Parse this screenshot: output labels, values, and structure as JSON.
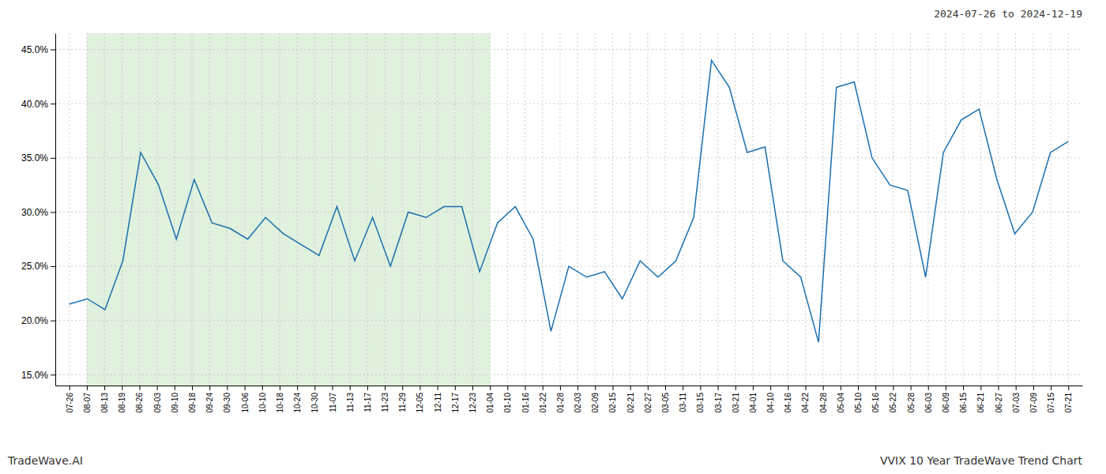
{
  "chart_data": {
    "type": "line",
    "title": "2024-07-26 to 2024-12-19",
    "annotations": [
      "TradeWave.AI",
      "VVIX 10 Year TradeWave Trend Chart"
    ],
    "x": [
      0,
      1.017857,
      2.035714,
      3.053571,
      4.071429,
      5.089286,
      6.107143,
      7.125,
      8.142857,
      9.160714,
      10.178571,
      11.196429,
      12.214286,
      13.232143,
      14.25,
      15.267857,
      16.285714,
      17.303571,
      18.321429,
      19.339286,
      20.357143,
      21.375,
      22.392857,
      23.410714,
      24.428571,
      25.446429,
      26.464286,
      27.482143,
      28.5,
      29.517857,
      30.535714,
      31.553571,
      32.571429,
      33.589286,
      34.607143,
      35.625,
      36.642857,
      37.660714,
      38.678571,
      39.696429,
      40.714286,
      41.732143,
      42.75,
      43.767857,
      44.785714,
      45.803571,
      46.821429,
      47.839286,
      48.857143,
      49.875,
      50.892857,
      51.910714,
      52.928571,
      53.946429,
      54.964286,
      55.982143,
      57
    ],
    "values": [
      21.5,
      22.0,
      21.0,
      25.5,
      35.5,
      32.5,
      27.5,
      33.0,
      29.0,
      28.5,
      27.5,
      29.5,
      28.0,
      27.0,
      26.0,
      30.5,
      25.5,
      29.5,
      25.0,
      30.0,
      29.5,
      30.5,
      30.5,
      24.5,
      29.0,
      30.5,
      27.5,
      19.0,
      25.0,
      24.0,
      24.5,
      22.0,
      25.5,
      24.0,
      25.5,
      29.5,
      44.0,
      41.5,
      35.5,
      36.0,
      25.5,
      24.0,
      18.0,
      41.5,
      42.0,
      35.0,
      32.5,
      32.0,
      24.0,
      35.5,
      38.5,
      39.5,
      33.0,
      28.0,
      30.0,
      35.5,
      36.5
    ],
    "color": "#1a6faf",
    "shade": {
      "range": [
        1,
        24
      ],
      "color": "#d6ecd2"
    },
    "xlim": [
      -0.8,
      57.8
    ],
    "xticks": [
      {
        "value": 0,
        "label": "07-26"
      },
      {
        "value": 1,
        "label": "08-07"
      },
      {
        "value": 2,
        "label": "08-13"
      },
      {
        "value": 3,
        "label": "08-19"
      },
      {
        "value": 4,
        "label": "08-26"
      },
      {
        "value": 5,
        "label": "09-03"
      },
      {
        "value": 6,
        "label": "09-10"
      },
      {
        "value": 7,
        "label": "09-18"
      },
      {
        "value": 8,
        "label": "09-24"
      },
      {
        "value": 9,
        "label": "09-30"
      },
      {
        "value": 10,
        "label": "10-06"
      },
      {
        "value": 11,
        "label": "10-10"
      },
      {
        "value": 12,
        "label": "10-18"
      },
      {
        "value": 13,
        "label": "10-24"
      },
      {
        "value": 14,
        "label": "10-30"
      },
      {
        "value": 15,
        "label": "11-07"
      },
      {
        "value": 16,
        "label": "11-13"
      },
      {
        "value": 17,
        "label": "11-17"
      },
      {
        "value": 18,
        "label": "11-23"
      },
      {
        "value": 19,
        "label": "11-29"
      },
      {
        "value": 20,
        "label": "12-05"
      },
      {
        "value": 21,
        "label": "12-11"
      },
      {
        "value": 22,
        "label": "12-17"
      },
      {
        "value": 23,
        "label": "12-23"
      },
      {
        "value": 24,
        "label": "01-04"
      },
      {
        "value": 25,
        "label": "01-10"
      },
      {
        "value": 26,
        "label": "01-16"
      },
      {
        "value": 27,
        "label": "01-22"
      },
      {
        "value": 28,
        "label": "01-28"
      },
      {
        "value": 29,
        "label": "02-03"
      },
      {
        "value": 30,
        "label": "02-09"
      },
      {
        "value": 31,
        "label": "02-15"
      },
      {
        "value": 32,
        "label": "02-21"
      },
      {
        "value": 33,
        "label": "02-27"
      },
      {
        "value": 34,
        "label": "03-05"
      },
      {
        "value": 35,
        "label": "03-11"
      },
      {
        "value": 36,
        "label": "03-15"
      },
      {
        "value": 37,
        "label": "03-17"
      },
      {
        "value": 38,
        "label": "03-21"
      },
      {
        "value": 39,
        "label": "04-01"
      },
      {
        "value": 40,
        "label": "04-10"
      },
      {
        "value": 41,
        "label": "04-16"
      },
      {
        "value": 42,
        "label": "04-22"
      },
      {
        "value": 43,
        "label": "04-28"
      },
      {
        "value": 44,
        "label": "05-04"
      },
      {
        "value": 45,
        "label": "05-10"
      },
      {
        "value": 46,
        "label": "05-16"
      },
      {
        "value": 47,
        "label": "05-22"
      },
      {
        "value": 48,
        "label": "05-28"
      },
      {
        "value": 49,
        "label": "06-03"
      },
      {
        "value": 50,
        "label": "06-09"
      },
      {
        "value": 51,
        "label": "06-15"
      },
      {
        "value": 52,
        "label": "06-21"
      },
      {
        "value": 53,
        "label": "06-27"
      },
      {
        "value": 54,
        "label": "07-03"
      },
      {
        "value": 55,
        "label": "07-09"
      },
      {
        "value": 56,
        "label": "07-15"
      },
      {
        "value": 57,
        "label": "07-21"
      }
    ],
    "ylim": [
      14.0,
      46.5
    ],
    "yticks": [
      {
        "value": 15.0,
        "label": "15.0%"
      },
      {
        "value": 20.0,
        "label": "20.0%"
      },
      {
        "value": 25.0,
        "label": "25.0%"
      },
      {
        "value": 30.0,
        "label": "30.0%"
      },
      {
        "value": 35.0,
        "label": "35.0%"
      },
      {
        "value": 40.0,
        "label": "40.0%"
      },
      {
        "value": 45.0,
        "label": "45.0%"
      }
    ],
    "grid": true
  }
}
